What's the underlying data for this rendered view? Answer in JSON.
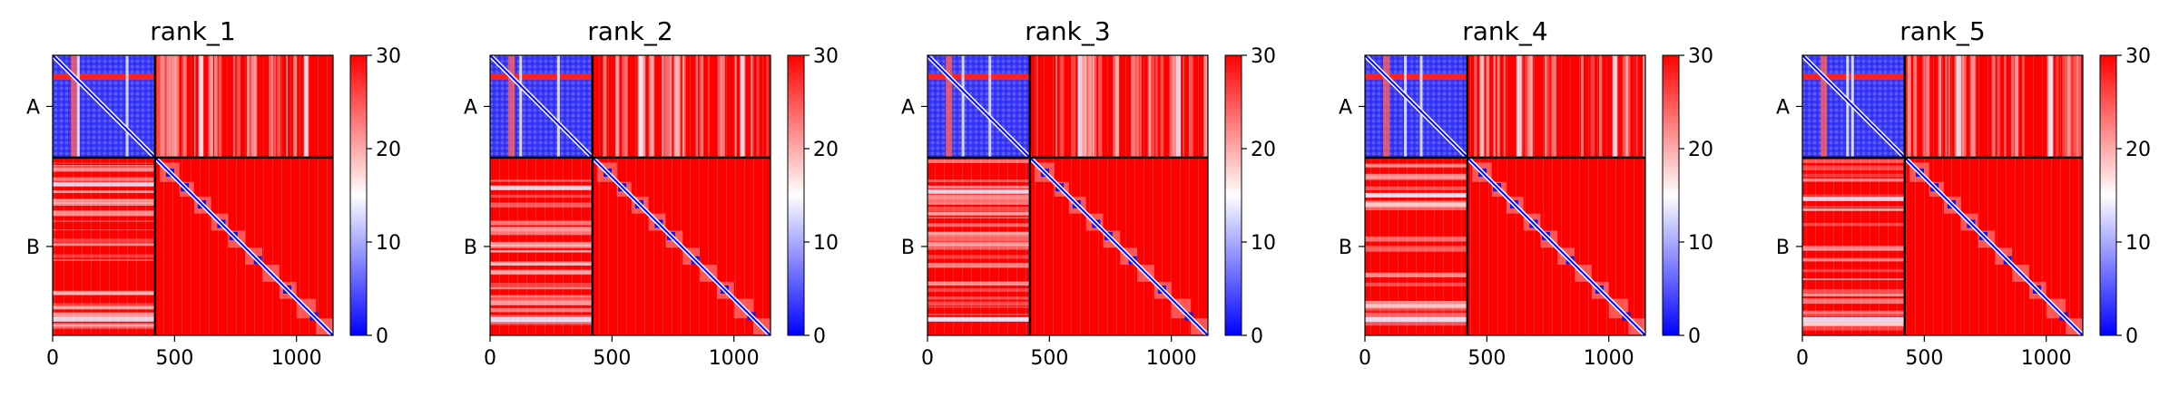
{
  "figure": {
    "colors": {
      "low": "#0000ff",
      "mid": "#ffffff",
      "high": "#ff0000",
      "axis": "#000000",
      "boundary": "#000000"
    }
  },
  "chart_data": [
    {
      "type": "heatmap",
      "title": "rank_1",
      "xlim": [
        0,
        1150
      ],
      "xticks": [
        0,
        500,
        1000
      ],
      "ychains": [
        "A",
        "B"
      ],
      "chain_boundary": 420,
      "total_length": 1150,
      "colorbar": {
        "min": 0,
        "max": 30,
        "ticks": [
          0,
          10,
          20,
          30
        ]
      }
    },
    {
      "type": "heatmap",
      "title": "rank_2",
      "xlim": [
        0,
        1150
      ],
      "xticks": [
        0,
        500,
        1000
      ],
      "ychains": [
        "A",
        "B"
      ],
      "chain_boundary": 420,
      "total_length": 1150,
      "colorbar": {
        "min": 0,
        "max": 30,
        "ticks": [
          0,
          10,
          20,
          30
        ]
      }
    },
    {
      "type": "heatmap",
      "title": "rank_3",
      "xlim": [
        0,
        1150
      ],
      "xticks": [
        0,
        500,
        1000
      ],
      "ychains": [
        "A",
        "B"
      ],
      "chain_boundary": 420,
      "total_length": 1150,
      "colorbar": {
        "min": 0,
        "max": 30,
        "ticks": [
          0,
          10,
          20,
          30
        ]
      }
    },
    {
      "type": "heatmap",
      "title": "rank_4",
      "xlim": [
        0,
        1150
      ],
      "xticks": [
        0,
        500,
        1000
      ],
      "ychains": [
        "A",
        "B"
      ],
      "chain_boundary": 420,
      "total_length": 1150,
      "colorbar": {
        "min": 0,
        "max": 30,
        "ticks": [
          0,
          10,
          20,
          30
        ]
      }
    },
    {
      "type": "heatmap",
      "title": "rank_5",
      "xlim": [
        0,
        1150
      ],
      "xticks": [
        0,
        500,
        1000
      ],
      "ychains": [
        "A",
        "B"
      ],
      "chain_boundary": 420,
      "total_length": 1150,
      "colorbar": {
        "min": 0,
        "max": 30,
        "ticks": [
          0,
          10,
          20,
          30
        ]
      }
    }
  ]
}
